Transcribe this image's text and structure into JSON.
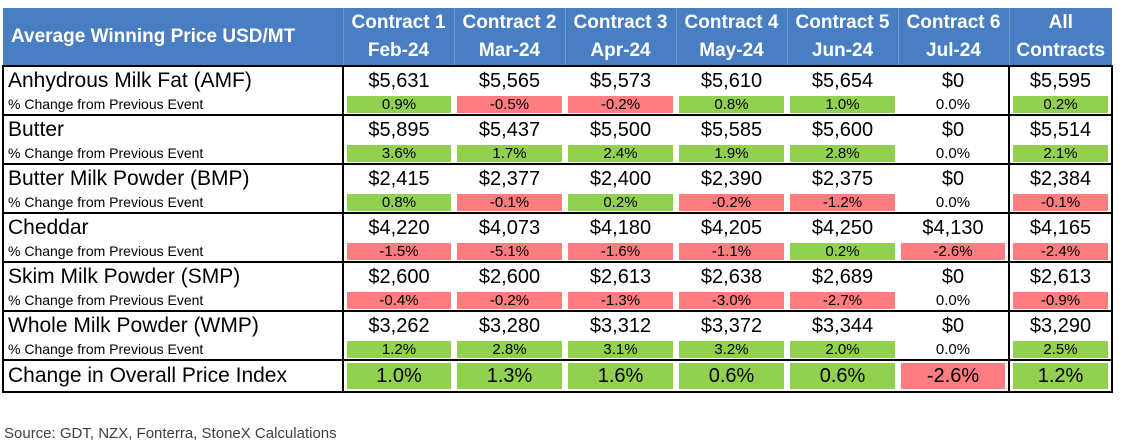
{
  "chart_data": {
    "type": "table",
    "title": "Average Winning Price USD/MT",
    "columns": [
      {
        "line1": "Contract 1",
        "line2": "Feb-24"
      },
      {
        "line1": "Contract 2",
        "line2": "Mar-24"
      },
      {
        "line1": "Contract 3",
        "line2": "Apr-24"
      },
      {
        "line1": "Contract 4",
        "line2": "May-24"
      },
      {
        "line1": "Contract 5",
        "line2": "Jun-24"
      },
      {
        "line1": "Contract 6",
        "line2": "Jul-24"
      },
      {
        "line1": "All",
        "line2": "Contracts"
      }
    ],
    "change_label": "% Change from Previous Event",
    "products": [
      {
        "name": "Anhydrous Milk Fat (AMF)",
        "prices": [
          "$5,631",
          "$5,565",
          "$5,573",
          "$5,610",
          "$5,654",
          "$0",
          "$5,595"
        ],
        "changes": [
          "0.9%",
          "-0.5%",
          "-0.2%",
          "0.8%",
          "1.0%",
          "0.0%",
          "0.2%"
        ]
      },
      {
        "name": "Butter",
        "prices": [
          "$5,895",
          "$5,437",
          "$5,500",
          "$5,585",
          "$5,600",
          "$0",
          "$5,514"
        ],
        "changes": [
          "3.6%",
          "1.7%",
          "2.4%",
          "1.9%",
          "2.8%",
          "0.0%",
          "2.1%"
        ]
      },
      {
        "name": "Butter Milk Powder (BMP)",
        "prices": [
          "$2,415",
          "$2,377",
          "$2,400",
          "$2,390",
          "$2,375",
          "$0",
          "$2,384"
        ],
        "changes": [
          "0.8%",
          "-0.1%",
          "0.2%",
          "-0.2%",
          "-1.2%",
          "0.0%",
          "-0.1%"
        ]
      },
      {
        "name": "Cheddar",
        "prices": [
          "$4,220",
          "$4,073",
          "$4,180",
          "$4,205",
          "$4,250",
          "$4,130",
          "$4,165"
        ],
        "changes": [
          "-1.5%",
          "-5.1%",
          "-1.6%",
          "-1.1%",
          "0.2%",
          "-2.6%",
          "-2.4%"
        ]
      },
      {
        "name": "Skim Milk Powder (SMP)",
        "prices": [
          "$2,600",
          "$2,600",
          "$2,613",
          "$2,638",
          "$2,689",
          "$0",
          "$2,613"
        ],
        "changes": [
          "-0.4%",
          "-0.2%",
          "-1.3%",
          "-3.0%",
          "-2.7%",
          "0.0%",
          "-0.9%"
        ]
      },
      {
        "name": "Whole Milk Powder (WMP)",
        "prices": [
          "$3,262",
          "$3,280",
          "$3,312",
          "$3,372",
          "$3,344",
          "$0",
          "$3,290"
        ],
        "changes": [
          "1.2%",
          "2.8%",
          "3.1%",
          "3.2%",
          "2.0%",
          "0.0%",
          "2.5%"
        ]
      }
    ],
    "index_row": {
      "name": "Change in Overall Price Index",
      "values": [
        "1.0%",
        "1.3%",
        "1.6%",
        "0.6%",
        "0.6%",
        "-2.6%",
        "1.2%"
      ]
    },
    "colors": {
      "header": "#4a7ec2",
      "positive": "#92d050",
      "negative": "#ff7c80"
    }
  },
  "source": "Source: GDT, NZX, Fonterra, StoneX Calculations"
}
